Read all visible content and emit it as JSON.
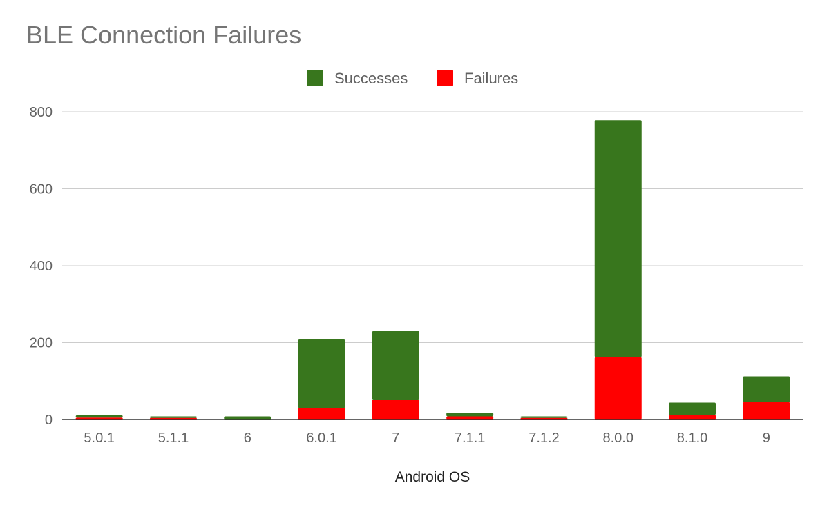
{
  "chart_data": {
    "type": "bar",
    "stacked": true,
    "title": "BLE Connection Failures",
    "xlabel": "Android OS",
    "ylabel": "",
    "ylim": [
      0,
      800
    ],
    "yticks": [
      0,
      200,
      400,
      600,
      800
    ],
    "grid": true,
    "legend_position": "top-center",
    "categories": [
      "5.0.1",
      "5.1.1",
      "6",
      "6.0.1",
      "7",
      "7.1.1",
      "7.1.2",
      "8.0.0",
      "8.1.0",
      "9"
    ],
    "series": [
      {
        "name": "Failures",
        "color": "#ff0000",
        "values": [
          5,
          4,
          0,
          30,
          52,
          8,
          4,
          162,
          12,
          45
        ]
      },
      {
        "name": "Successes",
        "color": "#38761d",
        "values": [
          6,
          4,
          8,
          178,
          178,
          10,
          4,
          616,
          32,
          67
        ]
      }
    ],
    "legend_order": [
      "Successes",
      "Failures"
    ]
  }
}
